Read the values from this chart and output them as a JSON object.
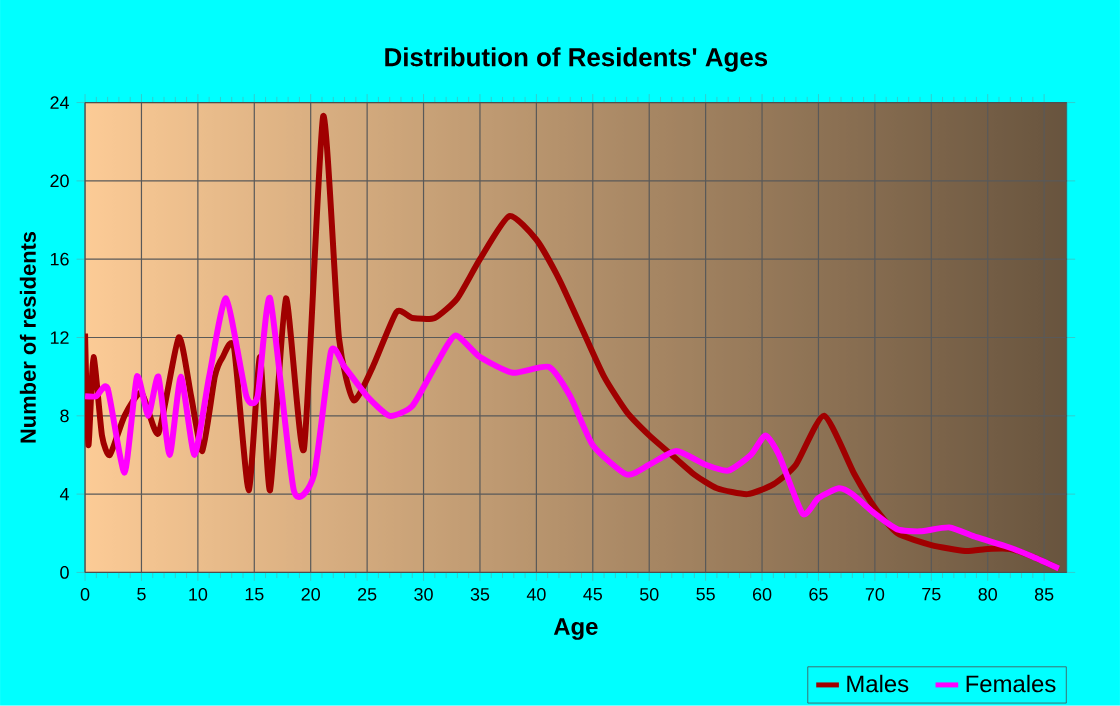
{
  "chart_data": {
    "type": "line",
    "title": "Distribution of Residents' Ages",
    "xlabel": "Age",
    "ylabel": "Number of residents",
    "xlim": [
      0,
      87
    ],
    "xticks": [
      0,
      5,
      10,
      15,
      20,
      25,
      30,
      35,
      40,
      45,
      50,
      55,
      60,
      65,
      70,
      75,
      80,
      85
    ],
    "ylim": [
      0,
      24
    ],
    "yticks": [
      0,
      4,
      8,
      12,
      16,
      20,
      24
    ],
    "grid": true,
    "legend": "bottom right",
    "marker": "none",
    "line_style": "solid",
    "series": [
      {
        "name": "Males",
        "color": "#a00000",
        "x": [
          0,
          0.3,
          0.75,
          1.5,
          2.2,
          3.5,
          5,
          6.5,
          8.3,
          9.4,
          10.4,
          11.5,
          12.2,
          13.2,
          14.5,
          15.5,
          16.4,
          17.8,
          19.4,
          21.1,
          22.5,
          23.8,
          25.5,
          27.6,
          29,
          31,
          33,
          35,
          37.6,
          40,
          42,
          44,
          46,
          48,
          50,
          52,
          54,
          56,
          58.7,
          61,
          63,
          65.5,
          68.2,
          70,
          72,
          75,
          78,
          80,
          82,
          84,
          86.3
        ],
        "values": [
          12.2,
          6.5,
          11,
          7,
          6,
          8,
          9.2,
          7.1,
          12,
          9,
          6.2,
          10,
          11,
          11.5,
          4.2,
          11,
          4.2,
          14,
          6.3,
          23.3,
          12,
          8.8,
          10.5,
          13.3,
          13,
          13,
          14,
          16,
          18.2,
          17,
          15,
          12.5,
          10,
          8.2,
          7,
          6,
          5,
          4.3,
          4,
          4.5,
          5.5,
          8,
          5,
          3.3,
          2,
          1.4,
          1.1,
          1.2,
          1.2,
          0.8,
          0.2
        ]
      },
      {
        "name": "Females",
        "color": "#ff00ff",
        "x": [
          0,
          1,
          2,
          3.5,
          4.6,
          5.6,
          6.5,
          7.5,
          8.5,
          9.7,
          11,
          12.5,
          14.3,
          15.3,
          16.4,
          18.5,
          20.3,
          21.8,
          23,
          25,
          27,
          29,
          31,
          32.8,
          35,
          37.9,
          41.1,
          43,
          45,
          48,
          50,
          52.4,
          55,
          57,
          59,
          60.3,
          61.5,
          63.6,
          65,
          66.8,
          68,
          70,
          72,
          74,
          76.6,
          79,
          81.8,
          84,
          86.3
        ],
        "values": [
          9,
          9,
          9.4,
          5.1,
          10,
          8,
          10,
          6,
          10,
          6,
          10,
          14,
          9,
          9,
          14,
          4.2,
          5,
          11.3,
          10.5,
          9,
          8,
          8.5,
          10.5,
          12.1,
          11,
          10.2,
          10.5,
          9,
          6.5,
          5,
          5.5,
          6.2,
          5.5,
          5.2,
          6,
          7,
          6,
          3,
          3.8,
          4.3,
          4,
          3,
          2.2,
          2.1,
          2.3,
          1.8,
          1.3,
          0.8,
          0.2
        ]
      }
    ]
  }
}
